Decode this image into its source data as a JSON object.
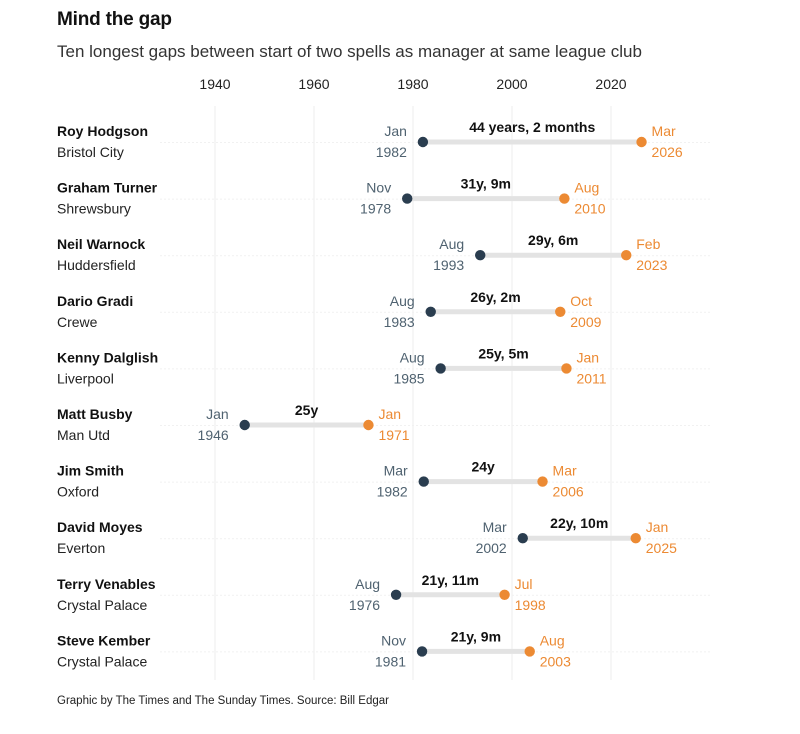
{
  "title": "Mind the gap",
  "subtitle": "Ten longest gaps between start of two spells as manager at same league club",
  "footer": "Graphic by The Times and The Sunday Times. Source: Bill Edgar",
  "colors": {
    "start": "#2a3d4f",
    "end": "#ec8a33",
    "start_label": "#4f6270",
    "end_label": "#ec8a33",
    "connector": "#e3e3e3",
    "grid": "#eeeeee"
  },
  "chart_data": {
    "type": "dumbbell",
    "x_axis": {
      "ticks": [
        1940,
        1960,
        1980,
        2000,
        2020
      ],
      "range": [
        1930,
        2040
      ]
    },
    "grid": true,
    "rows": [
      {
        "manager": "Roy Hodgson",
        "club": "Bristol City",
        "start": 1982.0,
        "end": 2026.17,
        "start_month": "Jan",
        "start_year": "1982",
        "end_month": "Mar",
        "end_year": "2026",
        "gap_label": "44 years, 2 months"
      },
      {
        "manager": "Graham Turner",
        "club": "Shrewsbury",
        "start": 1978.83,
        "end": 2010.58,
        "start_month": "Nov",
        "start_year": "1978",
        "end_month": "Aug",
        "end_year": "2010",
        "gap_label": "31y, 9m"
      },
      {
        "manager": "Neil Warnock",
        "club": "Huddersfield",
        "start": 1993.58,
        "end": 2023.08,
        "start_month": "Aug",
        "start_year": "1993",
        "end_month": "Feb",
        "end_year": "2023",
        "gap_label": "29y, 6m"
      },
      {
        "manager": "Dario Gradi",
        "club": "Crewe",
        "start": 1983.58,
        "end": 2009.75,
        "start_month": "Aug",
        "start_year": "1983",
        "end_month": "Oct",
        "end_year": "2009",
        "gap_label": "26y, 2m"
      },
      {
        "manager": "Kenny Dalglish",
        "club": "Liverpool",
        "start": 1985.58,
        "end": 2011.0,
        "start_month": "Aug",
        "start_year": "1985",
        "end_month": "Jan",
        "end_year": "2011",
        "gap_label": "25y, 5m"
      },
      {
        "manager": "Matt Busby",
        "club": "Man Utd",
        "start": 1946.0,
        "end": 1971.0,
        "start_month": "Jan",
        "start_year": "1946",
        "end_month": "Jan",
        "end_year": "1971",
        "gap_label": "25y"
      },
      {
        "manager": "Jim Smith",
        "club": "Oxford",
        "start": 1982.17,
        "end": 2006.17,
        "start_month": "Mar",
        "start_year": "1982",
        "end_month": "Mar",
        "end_year": "2006",
        "gap_label": "24y"
      },
      {
        "manager": "David Moyes",
        "club": "Everton",
        "start": 2002.17,
        "end": 2025.0,
        "start_month": "Mar",
        "start_year": "2002",
        "end_month": "Jan",
        "end_year": "2025",
        "gap_label": "22y, 10m"
      },
      {
        "manager": "Terry Venables",
        "club": "Crystal Palace",
        "start": 1976.58,
        "end": 1998.5,
        "start_month": "Aug",
        "start_year": "1976",
        "end_month": "Jul",
        "end_year": "1998",
        "gap_label": "21y, 11m"
      },
      {
        "manager": "Steve Kember",
        "club": "Crystal Palace",
        "start": 1981.83,
        "end": 2003.58,
        "start_month": "Nov",
        "start_year": "1981",
        "end_month": "Aug",
        "end_year": "2003",
        "gap_label": "21y, 9m"
      }
    ]
  }
}
